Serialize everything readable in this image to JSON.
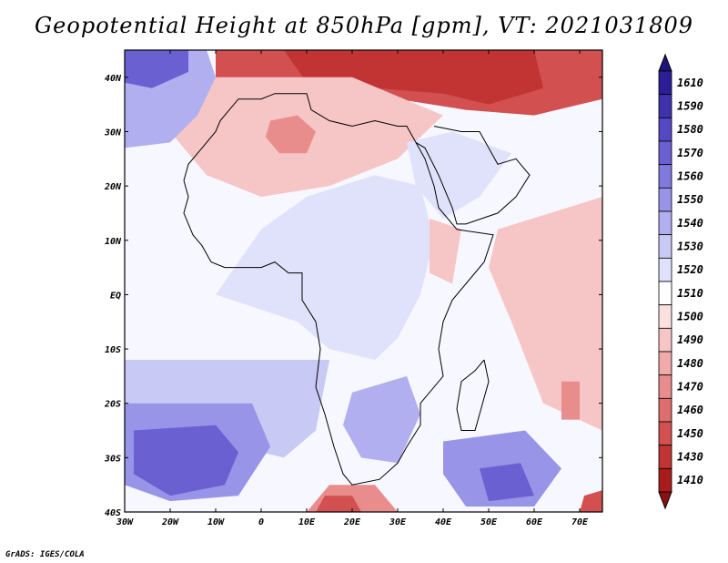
{
  "title": "Geopotential Height at 850hPa [gpm], VT: 2021031809",
  "credit": "GrADS: IGES/COLA",
  "map": {
    "lon_range": [
      -30,
      75
    ],
    "lat_range": [
      -40,
      45
    ],
    "x_ticks": [
      {
        "lon": -30,
        "label": "30W"
      },
      {
        "lon": -20,
        "label": "20W"
      },
      {
        "lon": -10,
        "label": "10W"
      },
      {
        "lon": 0,
        "label": "0"
      },
      {
        "lon": 10,
        "label": "10E"
      },
      {
        "lon": 20,
        "label": "20E"
      },
      {
        "lon": 30,
        "label": "30E"
      },
      {
        "lon": 40,
        "label": "40E"
      },
      {
        "lon": 50,
        "label": "50E"
      },
      {
        "lon": 60,
        "label": "60E"
      },
      {
        "lon": 70,
        "label": "70E"
      }
    ],
    "y_ticks": [
      {
        "lat": 40,
        "label": "40N"
      },
      {
        "lat": 30,
        "label": "30N"
      },
      {
        "lat": 20,
        "label": "20N"
      },
      {
        "lat": 10,
        "label": "10N"
      },
      {
        "lat": 0,
        "label": "EQ"
      },
      {
        "lat": -10,
        "label": "10S"
      },
      {
        "lat": -20,
        "label": "20S"
      },
      {
        "lat": -30,
        "label": "30S"
      },
      {
        "lat": -40,
        "label": "40S"
      }
    ]
  },
  "colorbar": {
    "levels": [
      {
        "label": "1610",
        "color": "#2d1e96"
      },
      {
        "label": "1590",
        "color": "#4032ad"
      },
      {
        "label": "1580",
        "color": "#5548c4"
      },
      {
        "label": "1570",
        "color": "#6a60d2"
      },
      {
        "label": "1560",
        "color": "#807ade"
      },
      {
        "label": "1550",
        "color": "#9894e8"
      },
      {
        "label": "1540",
        "color": "#b1aff0"
      },
      {
        "label": "1530",
        "color": "#c9c9f6"
      },
      {
        "label": "1520",
        "color": "#e0e2fb"
      },
      {
        "label": "1510",
        "color": "#ffffff"
      },
      {
        "label": "1500",
        "color": "#fbe0e0"
      },
      {
        "label": "1490",
        "color": "#f6c6c6"
      },
      {
        "label": "1480",
        "color": "#f0aaaa"
      },
      {
        "label": "1470",
        "color": "#e88c8c"
      },
      {
        "label": "1460",
        "color": "#de6e6e"
      },
      {
        "label": "1450",
        "color": "#d25050"
      },
      {
        "label": "1430",
        "color": "#c23434"
      },
      {
        "label": "1410",
        "color": "#a81c1c"
      }
    ],
    "top_color": "#1e1478",
    "bottom_color": "#8c1010"
  },
  "field_regions": [
    {
      "name": "north-red-band",
      "level": "1450",
      "points": [
        [
          -10,
          45
        ],
        [
          75,
          45
        ],
        [
          75,
          36
        ],
        [
          60,
          33
        ],
        [
          45,
          34
        ],
        [
          30,
          36
        ],
        [
          15,
          37
        ],
        [
          0,
          38
        ],
        [
          -10,
          39
        ]
      ]
    },
    {
      "name": "north-deep-red",
      "level": "1430",
      "points": [
        [
          5,
          45
        ],
        [
          60,
          45
        ],
        [
          62,
          38
        ],
        [
          50,
          35
        ],
        [
          40,
          37
        ],
        [
          25,
          38
        ],
        [
          10,
          39
        ]
      ]
    },
    {
      "name": "sahara-pink",
      "level": "1490",
      "points": [
        [
          -20,
          40
        ],
        [
          20,
          40
        ],
        [
          40,
          33
        ],
        [
          30,
          25
        ],
        [
          15,
          20
        ],
        [
          0,
          18
        ],
        [
          -12,
          22
        ],
        [
          -20,
          30
        ]
      ]
    },
    {
      "name": "algeria-red",
      "level": "1470",
      "points": [
        [
          2,
          32
        ],
        [
          8,
          33
        ],
        [
          12,
          30
        ],
        [
          10,
          26
        ],
        [
          4,
          26
        ],
        [
          1,
          29
        ]
      ]
    },
    {
      "name": "nw-atlantic-blue",
      "level": "1540",
      "points": [
        [
          -30,
          45
        ],
        [
          -12,
          45
        ],
        [
          -10,
          40
        ],
        [
          -14,
          33
        ],
        [
          -20,
          28
        ],
        [
          -30,
          27
        ]
      ]
    },
    {
      "name": "nw-atlantic-deep",
      "level": "1570",
      "points": [
        [
          -30,
          45
        ],
        [
          -16,
          45
        ],
        [
          -16,
          41
        ],
        [
          -24,
          38
        ],
        [
          -30,
          39
        ]
      ]
    },
    {
      "name": "central-africa-blue",
      "level": "1520",
      "points": [
        [
          0,
          12
        ],
        [
          10,
          18
        ],
        [
          25,
          22
        ],
        [
          35,
          20
        ],
        [
          38,
          10
        ],
        [
          35,
          0
        ],
        [
          30,
          -8
        ],
        [
          25,
          -12
        ],
        [
          15,
          -10
        ],
        [
          8,
          -5
        ],
        [
          -10,
          0
        ],
        [
          -5,
          6
        ]
      ]
    },
    {
      "name": "arabia-blue",
      "level": "1520",
      "points": [
        [
          32,
          28
        ],
        [
          42,
          30
        ],
        [
          55,
          26
        ],
        [
          48,
          18
        ],
        [
          40,
          14
        ],
        [
          34,
          20
        ]
      ]
    },
    {
      "name": "horn-pink",
      "level": "1490",
      "points": [
        [
          37,
          14
        ],
        [
          44,
          12
        ],
        [
          42,
          2
        ],
        [
          37,
          4
        ]
      ]
    },
    {
      "name": "indian-ocean-pink",
      "level": "1490",
      "points": [
        [
          52,
          12
        ],
        [
          75,
          18
        ],
        [
          75,
          -25
        ],
        [
          62,
          -20
        ],
        [
          55,
          -5
        ],
        [
          50,
          5
        ]
      ]
    },
    {
      "name": "madagascar-red",
      "level": "1470",
      "points": [
        [
          66,
          -16
        ],
        [
          70,
          -16
        ],
        [
          70,
          -23
        ],
        [
          66,
          -23
        ]
      ]
    },
    {
      "name": "south-atlantic-light",
      "level": "1530",
      "points": [
        [
          -30,
          -12
        ],
        [
          15,
          -12
        ],
        [
          12,
          -25
        ],
        [
          5,
          -30
        ],
        [
          -10,
          -27
        ],
        [
          -30,
          -24
        ]
      ]
    },
    {
      "name": "south-atlantic-mid",
      "level": "1550",
      "points": [
        [
          -30,
          -20
        ],
        [
          -2,
          -20
        ],
        [
          2,
          -28
        ],
        [
          -5,
          -37
        ],
        [
          -20,
          -38
        ],
        [
          -30,
          -35
        ]
      ]
    },
    {
      "name": "south-atlantic-deep",
      "level": "1570",
      "points": [
        [
          -28,
          -25
        ],
        [
          -10,
          -24
        ],
        [
          -5,
          -29
        ],
        [
          -8,
          -35
        ],
        [
          -20,
          -37
        ],
        [
          -28,
          -33
        ]
      ]
    },
    {
      "name": "southern-africa-blue",
      "level": "1540",
      "points": [
        [
          20,
          -18
        ],
        [
          32,
          -15
        ],
        [
          35,
          -22
        ],
        [
          30,
          -31
        ],
        [
          22,
          -30
        ],
        [
          18,
          -24
        ]
      ]
    },
    {
      "name": "sw-indian-blue",
      "level": "1550",
      "points": [
        [
          40,
          -27
        ],
        [
          58,
          -25
        ],
        [
          66,
          -32
        ],
        [
          60,
          -39
        ],
        [
          45,
          -39
        ],
        [
          40,
          -33
        ]
      ]
    },
    {
      "name": "sw-indian-deep",
      "level": "1570",
      "points": [
        [
          48,
          -32
        ],
        [
          57,
          -31
        ],
        [
          60,
          -37
        ],
        [
          50,
          -38
        ]
      ]
    },
    {
      "name": "south-red",
      "level": "1470",
      "points": [
        [
          10,
          -40
        ],
        [
          30,
          -40
        ],
        [
          25,
          -35
        ],
        [
          15,
          -35
        ]
      ]
    },
    {
      "name": "south-deep-red",
      "level": "1450",
      "points": [
        [
          12,
          -40
        ],
        [
          22,
          -40
        ],
        [
          20,
          -37
        ],
        [
          14,
          -37
        ]
      ]
    },
    {
      "name": "se-corner-red",
      "level": "1450",
      "points": [
        [
          70,
          -40
        ],
        [
          75,
          -40
        ],
        [
          75,
          -36
        ],
        [
          71,
          -37
        ]
      ]
    }
  ],
  "coastline": [
    [
      -17,
      21
    ],
    [
      -16,
      24
    ],
    [
      -13,
      27
    ],
    [
      -10,
      30
    ],
    [
      -9,
      32
    ],
    [
      -7,
      34
    ],
    [
      -5,
      36
    ],
    [
      0,
      36
    ],
    [
      3,
      37
    ],
    [
      10,
      37
    ],
    [
      11,
      34
    ],
    [
      15,
      32
    ],
    [
      20,
      31
    ],
    [
      25,
      32
    ],
    [
      30,
      31
    ],
    [
      32,
      31
    ],
    [
      34,
      28
    ],
    [
      36,
      25
    ],
    [
      38,
      20
    ],
    [
      39,
      16
    ],
    [
      43,
      12
    ],
    [
      51,
      11
    ],
    [
      49,
      6
    ],
    [
      45,
      2
    ],
    [
      42,
      -1
    ],
    [
      40,
      -5
    ],
    [
      39,
      -10
    ],
    [
      40,
      -15
    ],
    [
      35,
      -20
    ],
    [
      35,
      -24
    ],
    [
      32,
      -28
    ],
    [
      30,
      -31
    ],
    [
      26,
      -34
    ],
    [
      20,
      -35
    ],
    [
      18,
      -33
    ],
    [
      16,
      -28
    ],
    [
      14,
      -22
    ],
    [
      12,
      -17
    ],
    [
      13,
      -10
    ],
    [
      12,
      -5
    ],
    [
      9,
      -1
    ],
    [
      9,
      4
    ],
    [
      6,
      4
    ],
    [
      3,
      6
    ],
    [
      0,
      5
    ],
    [
      -5,
      5
    ],
    [
      -8,
      5
    ],
    [
      -11,
      6
    ],
    [
      -13,
      9
    ],
    [
      -15,
      11
    ],
    [
      -17,
      15
    ],
    [
      -16,
      18
    ],
    [
      -17,
      21
    ]
  ],
  "arabia": [
    [
      34,
      28
    ],
    [
      36,
      27
    ],
    [
      39,
      22
    ],
    [
      42,
      16
    ],
    [
      43,
      13
    ],
    [
      45,
      13
    ],
    [
      52,
      15
    ],
    [
      56,
      18
    ],
    [
      59,
      22
    ],
    [
      56,
      25
    ],
    [
      52,
      24
    ],
    [
      50,
      27
    ],
    [
      48,
      30
    ],
    [
      44,
      30
    ],
    [
      38,
      31
    ]
  ],
  "madagascar": [
    [
      49,
      -12
    ],
    [
      50,
      -16
    ],
    [
      48,
      -22
    ],
    [
      47,
      -25
    ],
    [
      44,
      -25
    ],
    [
      43,
      -21
    ],
    [
      44,
      -16
    ],
    [
      47,
      -14
    ]
  ]
}
